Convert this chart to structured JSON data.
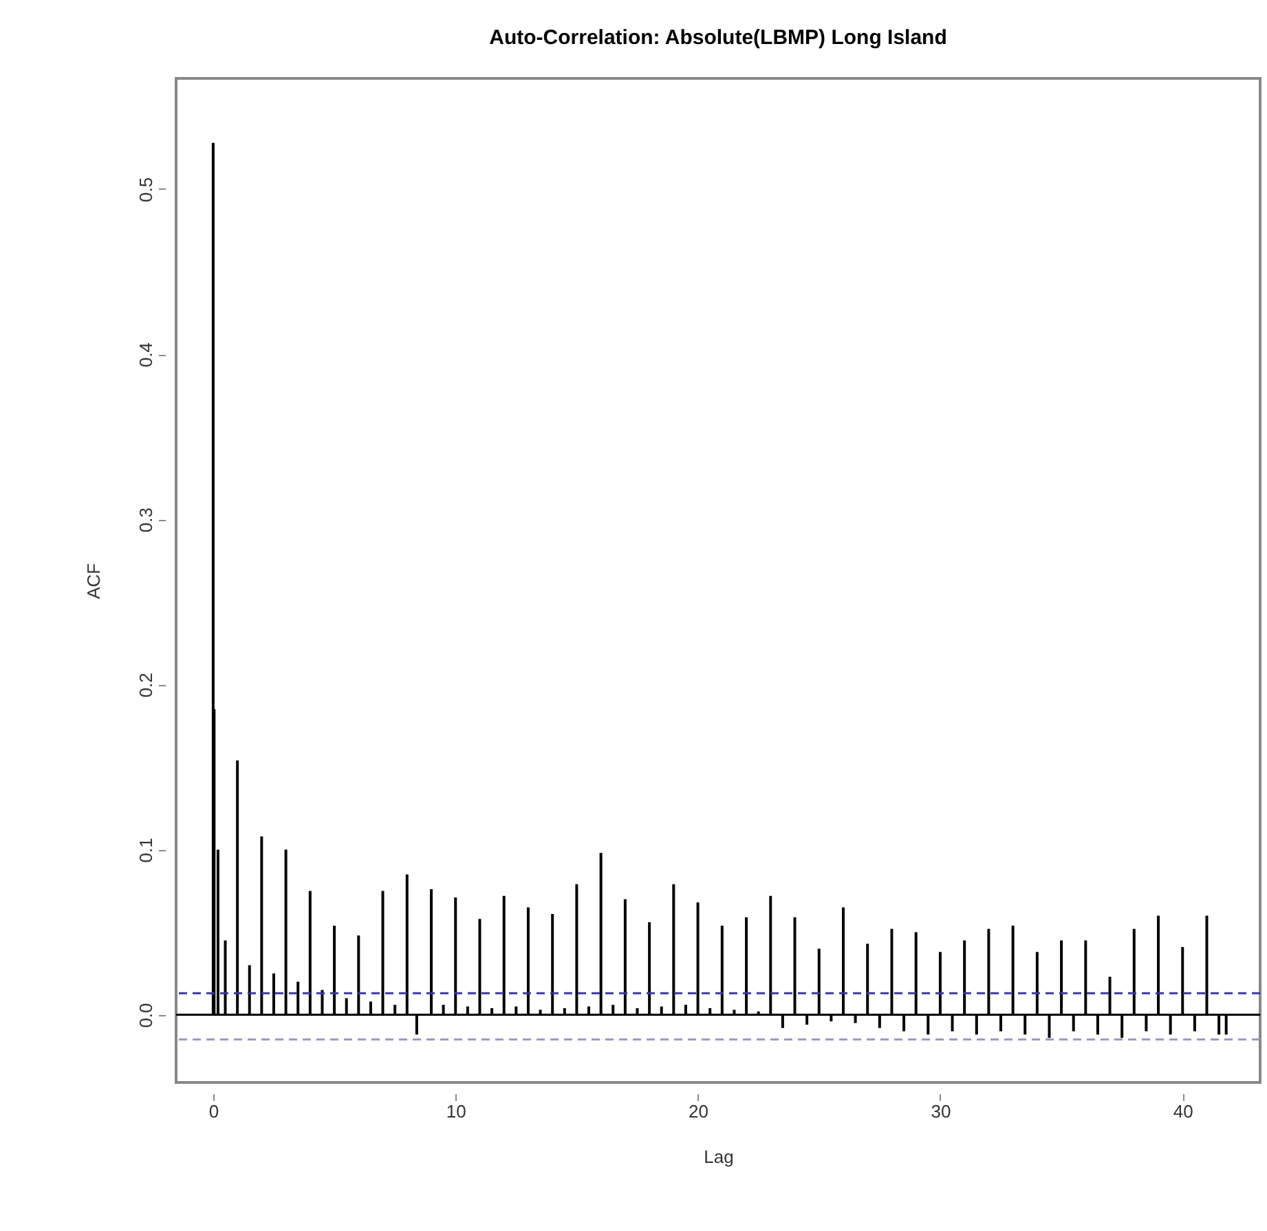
{
  "chart_data": {
    "type": "bar",
    "title": "Auto-Correlation: Absolute(LBMP) Long Island",
    "xlabel": "Lag",
    "ylabel": "ACF",
    "x": [
      0,
      0.04,
      0.2,
      0.5,
      1,
      1.5,
      2,
      2.5,
      3,
      3.5,
      4,
      4.5,
      5,
      5.5,
      6,
      6.5,
      7,
      7.5,
      8,
      8.4,
      9,
      9.5,
      10,
      10.5,
      11,
      11.5,
      12,
      12.5,
      13,
      13.5,
      14,
      14.5,
      15,
      15.5,
      16,
      16.5,
      17,
      17.5,
      18,
      18.5,
      19,
      19.5,
      20,
      20.5,
      21,
      21.5,
      22,
      22.5,
      23,
      23.5,
      24,
      24.5,
      25,
      25.5,
      26,
      26.5,
      27,
      27.5,
      28,
      28.5,
      29,
      29.5,
      30,
      30.5,
      31,
      31.5,
      32,
      32.5,
      33,
      33.5,
      34,
      34.5,
      35,
      35.5,
      36,
      36.5,
      37,
      37.5,
      38,
      38.5,
      39,
      39.5,
      40,
      40.5,
      41,
      41.5,
      41.8
    ],
    "values": [
      0.528,
      0.185,
      0.1,
      0.045,
      0.154,
      0.03,
      0.108,
      0.025,
      0.1,
      0.02,
      0.075,
      0.015,
      0.054,
      0.01,
      0.048,
      0.008,
      0.075,
      0.006,
      0.085,
      -0.012,
      0.076,
      0.006,
      0.071,
      0.005,
      0.058,
      0.004,
      0.072,
      0.005,
      0.065,
      0.003,
      0.061,
      0.004,
      0.079,
      0.005,
      0.098,
      0.006,
      0.07,
      0.004,
      0.056,
      0.005,
      0.079,
      0.006,
      0.068,
      0.004,
      0.054,
      0.003,
      0.059,
      0.002,
      0.072,
      -0.008,
      0.059,
      -0.006,
      0.04,
      -0.004,
      0.065,
      -0.005,
      0.043,
      -0.008,
      0.052,
      -0.01,
      0.05,
      -0.012,
      0.038,
      -0.01,
      0.045,
      -0.012,
      0.052,
      -0.01,
      0.054,
      -0.012,
      0.038,
      -0.014,
      0.045,
      -0.01,
      0.045,
      -0.012,
      0.023,
      -0.014,
      0.052,
      -0.01,
      0.06,
      -0.012,
      0.041,
      -0.01,
      0.06,
      -0.012,
      -0.012
    ],
    "color": "#000000",
    "xlim": [
      -1.53,
      43.2
    ],
    "ylim": [
      -0.041,
      0.567
    ],
    "xticks": [
      0,
      10,
      20,
      30,
      40
    ],
    "yticks": [
      {
        "value": 0,
        "label": "0.0"
      },
      0.1,
      0.2,
      0.3,
      0.4,
      0.5
    ],
    "ref_lines": [
      {
        "axis": "y",
        "value": 0,
        "color": "#000000",
        "line_style": "solid"
      },
      {
        "axis": "y",
        "value": 0.013,
        "color": "#3a3a9a",
        "line_style": "dashed"
      },
      {
        "axis": "y",
        "value": -0.015,
        "color": "#9a9ac8",
        "line_style": "dashed"
      }
    ],
    "grid": false
  }
}
